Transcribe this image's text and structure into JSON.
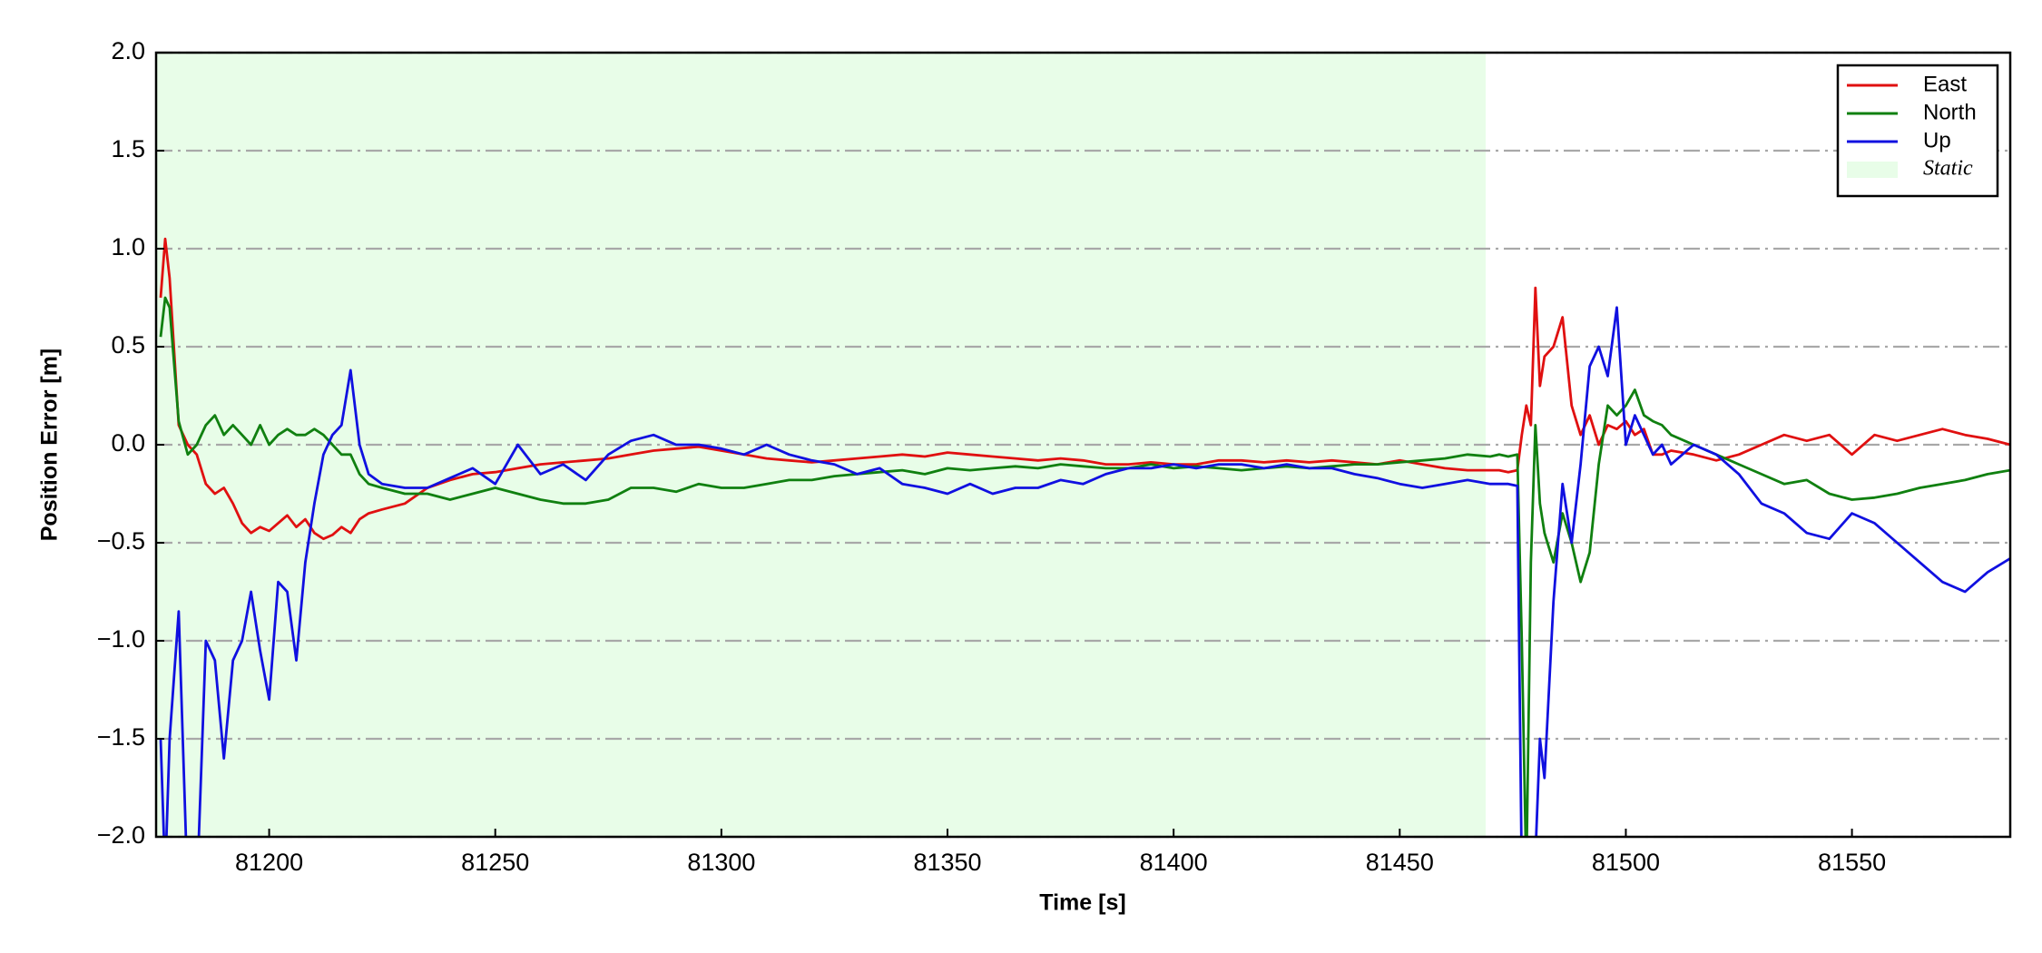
{
  "chart_data": {
    "type": "line",
    "xlabel": "Time [s]",
    "ylabel": "Position Error [m]",
    "xlim": [
      81175,
      81585
    ],
    "ylim": [
      -2,
      2
    ],
    "xticks": [
      81200,
      81250,
      81300,
      81350,
      81400,
      81450,
      81500,
      81550
    ],
    "yticks": [
      {
        "value": -2,
        "label": "−2.0"
      },
      {
        "value": -1.5,
        "label": "−1.5"
      },
      {
        "value": -1,
        "label": "−1.0"
      },
      {
        "value": -0.5,
        "label": "−0.5"
      },
      {
        "value": 0,
        "label": "0.0"
      },
      {
        "value": 0.5,
        "label": "0.5"
      },
      {
        "value": 1,
        "label": "1.0"
      },
      {
        "value": 1.5,
        "label": "1.5"
      },
      {
        "value": 2,
        "label": "2.0"
      }
    ],
    "grid": "y",
    "legend": "upper right",
    "shaded": {
      "name": "Static",
      "color": "#e8fde8",
      "x": [
        81175,
        81469
      ]
    },
    "x": [
      81176,
      81177,
      81178,
      81180,
      81182,
      81184,
      81186,
      81188,
      81190,
      81192,
      81194,
      81196,
      81198,
      81200,
      81202,
      81204,
      81206,
      81208,
      81210,
      81212,
      81214,
      81216,
      81218,
      81220,
      81222,
      81225,
      81230,
      81235,
      81240,
      81245,
      81250,
      81255,
      81260,
      81265,
      81270,
      81275,
      81280,
      81285,
      81290,
      81295,
      81300,
      81305,
      81310,
      81315,
      81320,
      81325,
      81330,
      81335,
      81340,
      81345,
      81350,
      81355,
      81360,
      81365,
      81370,
      81375,
      81380,
      81385,
      81390,
      81395,
      81400,
      81405,
      81410,
      81415,
      81420,
      81425,
      81430,
      81435,
      81440,
      81445,
      81450,
      81455,
      81460,
      81465,
      81470,
      81472,
      81474,
      81476,
      81477,
      81478,
      81479,
      81480,
      81481,
      81482,
      81484,
      81486,
      81488,
      81490,
      81492,
      81494,
      81496,
      81498,
      81500,
      81502,
      81504,
      81506,
      81508,
      81510,
      81515,
      81520,
      81525,
      81530,
      81535,
      81540,
      81545,
      81550,
      81555,
      81560,
      81565,
      81570,
      81575,
      81580,
      81585
    ],
    "series": [
      {
        "name": "East",
        "color": "#e01010",
        "values": [
          0.75,
          1.05,
          0.85,
          0.1,
          0.0,
          -0.05,
          -0.2,
          -0.25,
          -0.22,
          -0.3,
          -0.4,
          -0.45,
          -0.42,
          -0.44,
          -0.4,
          -0.36,
          -0.42,
          -0.38,
          -0.45,
          -0.48,
          -0.46,
          -0.42,
          -0.45,
          -0.38,
          -0.35,
          -0.33,
          -0.3,
          -0.22,
          -0.18,
          -0.15,
          -0.14,
          -0.12,
          -0.1,
          -0.09,
          -0.08,
          -0.07,
          -0.05,
          -0.03,
          -0.02,
          -0.01,
          -0.03,
          -0.05,
          -0.07,
          -0.08,
          -0.09,
          -0.08,
          -0.07,
          -0.06,
          -0.05,
          -0.06,
          -0.04,
          -0.05,
          -0.06,
          -0.07,
          -0.08,
          -0.07,
          -0.08,
          -0.1,
          -0.1,
          -0.09,
          -0.1,
          -0.1,
          -0.08,
          -0.08,
          -0.09,
          -0.08,
          -0.09,
          -0.08,
          -0.09,
          -0.1,
          -0.08,
          -0.1,
          -0.12,
          -0.13,
          -0.13,
          -0.13,
          -0.14,
          -0.13,
          0.05,
          0.2,
          0.1,
          0.8,
          0.3,
          0.45,
          0.5,
          0.65,
          0.2,
          0.05,
          0.15,
          0.0,
          0.1,
          0.08,
          0.12,
          0.05,
          0.08,
          -0.05,
          -0.05,
          -0.03,
          -0.05,
          -0.08,
          -0.05,
          0.0,
          0.05,
          0.02,
          0.05,
          -0.05,
          0.05,
          0.02,
          0.05,
          0.08,
          0.05,
          0.03,
          0.0
        ]
      },
      {
        "name": "North",
        "color": "#108010",
        "values": [
          0.55,
          0.75,
          0.7,
          0.12,
          -0.05,
          0.0,
          0.1,
          0.15,
          0.05,
          0.1,
          0.05,
          0.0,
          0.1,
          0.0,
          0.05,
          0.08,
          0.05,
          0.05,
          0.08,
          0.05,
          0.0,
          -0.05,
          -0.05,
          -0.15,
          -0.2,
          -0.22,
          -0.25,
          -0.25,
          -0.28,
          -0.25,
          -0.22,
          -0.25,
          -0.28,
          -0.3,
          -0.3,
          -0.28,
          -0.22,
          -0.22,
          -0.24,
          -0.2,
          -0.22,
          -0.22,
          -0.2,
          -0.18,
          -0.18,
          -0.16,
          -0.15,
          -0.14,
          -0.13,
          -0.15,
          -0.12,
          -0.13,
          -0.12,
          -0.11,
          -0.12,
          -0.1,
          -0.11,
          -0.12,
          -0.12,
          -0.1,
          -0.12,
          -0.11,
          -0.12,
          -0.13,
          -0.12,
          -0.11,
          -0.12,
          -0.11,
          -0.1,
          -0.1,
          -0.09,
          -0.08,
          -0.07,
          -0.05,
          -0.06,
          -0.05,
          -0.06,
          -0.05,
          -1.0,
          -2.2,
          -0.6,
          0.1,
          -0.3,
          -0.45,
          -0.6,
          -0.35,
          -0.5,
          -0.7,
          -0.55,
          -0.1,
          0.2,
          0.15,
          0.2,
          0.28,
          0.15,
          0.12,
          0.1,
          0.05,
          0.0,
          -0.05,
          -0.1,
          -0.15,
          -0.2,
          -0.18,
          -0.25,
          -0.28,
          -0.27,
          -0.25,
          -0.22,
          -0.2,
          -0.18,
          -0.15,
          -0.13
        ]
      },
      {
        "name": "Up",
        "color": "#1010e0",
        "values": [
          -1.5,
          -2.2,
          -1.5,
          -0.85,
          -2.3,
          -2.3,
          -1.0,
          -1.1,
          -1.6,
          -1.1,
          -1.0,
          -0.75,
          -1.05,
          -1.3,
          -0.7,
          -0.75,
          -1.1,
          -0.6,
          -0.3,
          -0.05,
          0.05,
          0.1,
          0.38,
          0.0,
          -0.15,
          -0.2,
          -0.22,
          -0.22,
          -0.17,
          -0.12,
          -0.2,
          0.0,
          -0.15,
          -0.1,
          -0.18,
          -0.05,
          0.02,
          0.05,
          0.0,
          0.0,
          -0.02,
          -0.05,
          0.0,
          -0.05,
          -0.08,
          -0.1,
          -0.15,
          -0.12,
          -0.2,
          -0.22,
          -0.25,
          -0.2,
          -0.25,
          -0.22,
          -0.22,
          -0.18,
          -0.2,
          -0.15,
          -0.12,
          -0.12,
          -0.1,
          -0.12,
          -0.1,
          -0.1,
          -0.12,
          -0.1,
          -0.12,
          -0.12,
          -0.15,
          -0.17,
          -0.2,
          -0.22,
          -0.2,
          -0.18,
          -0.2,
          -0.2,
          -0.2,
          -0.21,
          -2.2,
          -2.3,
          -2.3,
          -2.1,
          -1.5,
          -1.7,
          -0.8,
          -0.2,
          -0.5,
          -0.1,
          0.4,
          0.5,
          0.35,
          0.7,
          0.0,
          0.15,
          0.05,
          -0.05,
          0.0,
          -0.1,
          0.0,
          -0.05,
          -0.15,
          -0.3,
          -0.35,
          -0.45,
          -0.48,
          -0.35,
          -0.4,
          -0.5,
          -0.6,
          -0.7,
          -0.75,
          -0.65,
          -0.58
        ]
      }
    ]
  }
}
